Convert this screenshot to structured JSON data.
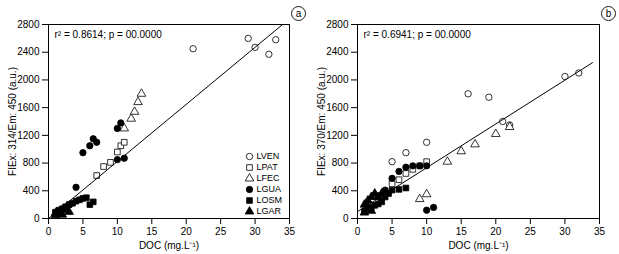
{
  "chart_data": [
    {
      "type": "scatter",
      "title": "a",
      "annotation": "r² = 0.8614; p = 00.0000",
      "xlabel": "DOC (mg.L⁻¹)",
      "ylabel": "FIEx: 314/Em: 450 (a.u.)",
      "xlim": [
        0,
        35
      ],
      "ylim": [
        0,
        2800
      ],
      "xticks": [
        0,
        5,
        10,
        15,
        20,
        25,
        30,
        35
      ],
      "yticks": [
        0,
        400,
        800,
        1200,
        1600,
        2000,
        2400,
        2800
      ],
      "legend": "lower right",
      "series": [
        {
          "name": "LVEN",
          "marker": "circle",
          "color": "white",
          "x": [
            21,
            29,
            30,
            32,
            33
          ],
          "values": [
            2450,
            2600,
            2470,
            2370,
            2580
          ]
        },
        {
          "name": "LPAT",
          "marker": "square",
          "color": "white",
          "x": [
            7,
            8,
            9,
            10,
            10.5,
            11
          ],
          "values": [
            620,
            750,
            810,
            960,
            1050,
            1100
          ]
        },
        {
          "name": "LFEC",
          "marker": "triangle",
          "color": "white",
          "x": [
            11,
            12,
            12.5,
            13,
            13.5
          ],
          "values": [
            1300,
            1440,
            1540,
            1680,
            1800
          ]
        },
        {
          "name": "LGUA",
          "marker": "circle",
          "color": "black",
          "x": [
            3,
            4,
            5,
            6,
            6.5,
            7,
            10,
            10.5,
            10,
            11
          ],
          "values": [
            200,
            450,
            950,
            1050,
            1150,
            1100,
            1300,
            1380,
            850,
            870
          ]
        },
        {
          "name": "LOSM",
          "marker": "square",
          "color": "black",
          "x": [
            1,
            1.5,
            2,
            2.5,
            3,
            3.5,
            4,
            4.5,
            5,
            5.5,
            6,
            6.5
          ],
          "values": [
            90,
            120,
            140,
            170,
            200,
            220,
            250,
            270,
            290,
            300,
            200,
            240
          ]
        },
        {
          "name": "LGAR",
          "marker": "triangle",
          "color": "black",
          "x": [
            1,
            1.5,
            2,
            2.5,
            3,
            2,
            1
          ],
          "values": [
            75,
            95,
            125,
            145,
            95,
            55,
            45
          ]
        },
        {
          "type": "line",
          "color": "black",
          "x": [
            0,
            34
          ],
          "values": [
            0,
            2800
          ]
        }
      ]
    },
    {
      "type": "scatter",
      "title": "b",
      "annotation": "r² = 0.6941; p = 00.0000",
      "xlabel": "DOC (mg.L⁻¹)",
      "ylabel": "FIEx: 370/Em: 450 (a.u.)",
      "xlim": [
        0,
        35
      ],
      "ylim": [
        0,
        2800
      ],
      "xticks": [
        0,
        5,
        10,
        15,
        20,
        25,
        30,
        35
      ],
      "yticks": [
        0,
        400,
        800,
        1200,
        1600,
        2000,
        2400,
        2800
      ],
      "series": [
        {
          "name": "LVEN",
          "marker": "circle",
          "color": "white",
          "x": [
            5,
            7,
            10,
            16,
            19,
            21,
            22,
            30,
            32
          ],
          "values": [
            820,
            950,
            1100,
            1800,
            1750,
            1400,
            1350,
            2050,
            2100
          ]
        },
        {
          "name": "LPAT",
          "marker": "square",
          "color": "white",
          "x": [
            5,
            6,
            7,
            8,
            9,
            10
          ],
          "values": [
            500,
            560,
            650,
            710,
            760,
            820
          ]
        },
        {
          "name": "LFEC",
          "marker": "triangle",
          "color": "white",
          "x": [
            9,
            10,
            13,
            15,
            17,
            20,
            22
          ],
          "values": [
            280,
            350,
            820,
            970,
            1070,
            1220,
            1320
          ]
        },
        {
          "name": "LGUA",
          "marker": "circle",
          "color": "black",
          "x": [
            3,
            4,
            5,
            6,
            7,
            8,
            9,
            10,
            10,
            11
          ],
          "values": [
            310,
            410,
            580,
            680,
            740,
            760,
            760,
            760,
            120,
            160
          ]
        },
        {
          "name": "LOSM",
          "marker": "square",
          "color": "black",
          "x": [
            1,
            1.5,
            2,
            2.5,
            3,
            3.5,
            4,
            4.5,
            5,
            6,
            7
          ],
          "values": [
            100,
            140,
            160,
            190,
            210,
            240,
            310,
            360,
            410,
            420,
            440
          ]
        },
        {
          "name": "LGAR",
          "marker": "triangle",
          "color": "black",
          "x": [
            1,
            1.5,
            2,
            2.5,
            3,
            3.5,
            2,
            1,
            1.5
          ],
          "values": [
            200,
            260,
            310,
            360,
            310,
            360,
            110,
            85,
            160
          ]
        },
        {
          "type": "line",
          "color": "black",
          "x": [
            0,
            34
          ],
          "values": [
            100,
            2250
          ]
        }
      ]
    }
  ]
}
